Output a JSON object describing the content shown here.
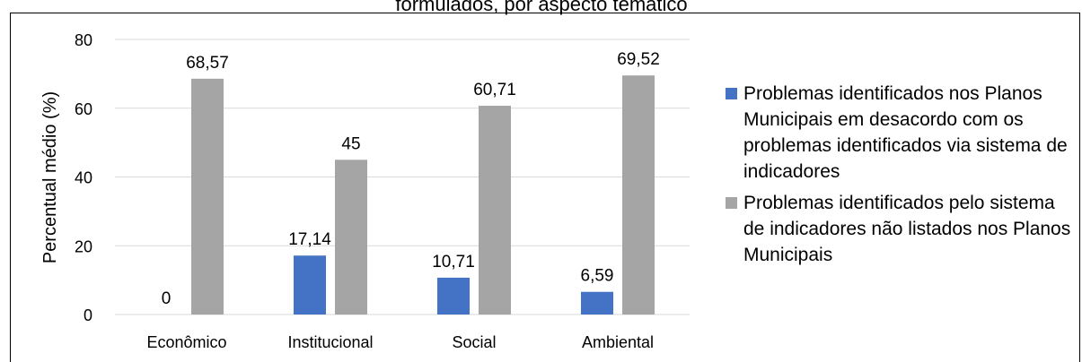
{
  "chart_data": {
    "type": "bar",
    "title": "formulados, por aspecto temático",
    "y_label": "Percentual médio (%)",
    "categories": [
      "Econômico",
      "Institucional",
      "Social",
      "Ambiental"
    ],
    "series": [
      {
        "name": "Problemas identificados nos Planos Municipais em desacordo com os problemas identificados via sistema de indicadores",
        "color": "#4472c4",
        "values": [
          0,
          17.14,
          10.71,
          6.59
        ],
        "value_labels": [
          "0",
          "17,14",
          "10,71",
          "6,59"
        ]
      },
      {
        "name": "Problemas identificados pelo sistema de indicadores não listados nos Planos Municipais",
        "color": "#a5a5a5",
        "values": [
          68.57,
          45,
          60.71,
          69.52
        ],
        "value_labels": [
          "68,57",
          "45",
          "60,71",
          "69,52"
        ]
      }
    ],
    "ylim": [
      0,
      80
    ],
    "yticks": [
      0,
      20,
      40,
      60,
      80
    ],
    "grid": true,
    "legend": "right"
  }
}
